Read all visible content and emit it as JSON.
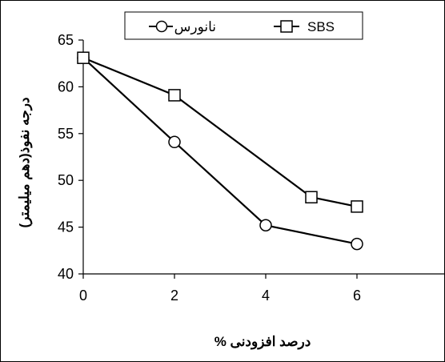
{
  "chart_data": {
    "type": "line",
    "x": [
      0,
      2,
      4,
      6
    ],
    "xlim": [
      0,
      8
    ],
    "ylim": [
      40,
      65
    ],
    "xticks": [
      "0",
      "2",
      "4",
      "6",
      "8"
    ],
    "yticks": [
      "40",
      "45",
      "50",
      "55",
      "60",
      "65"
    ],
    "xlabel": "درصد افزودنی %",
    "ylabel": "درجه نفوذ(دهم میلیمتر)",
    "grid": false,
    "legend_position": "top-center",
    "series": [
      {
        "name": "نانورس",
        "marker": "circle",
        "color": "#000000",
        "points": [
          [
            0,
            63.1
          ],
          [
            2,
            54.1
          ],
          [
            4,
            45.2
          ],
          [
            6,
            43.2
          ]
        ]
      },
      {
        "name": "SBS",
        "marker": "square",
        "color": "#000000",
        "points": [
          [
            0,
            63.1
          ],
          [
            2,
            59.1
          ],
          [
            5,
            48.2
          ],
          [
            6,
            47.2
          ]
        ]
      }
    ]
  }
}
